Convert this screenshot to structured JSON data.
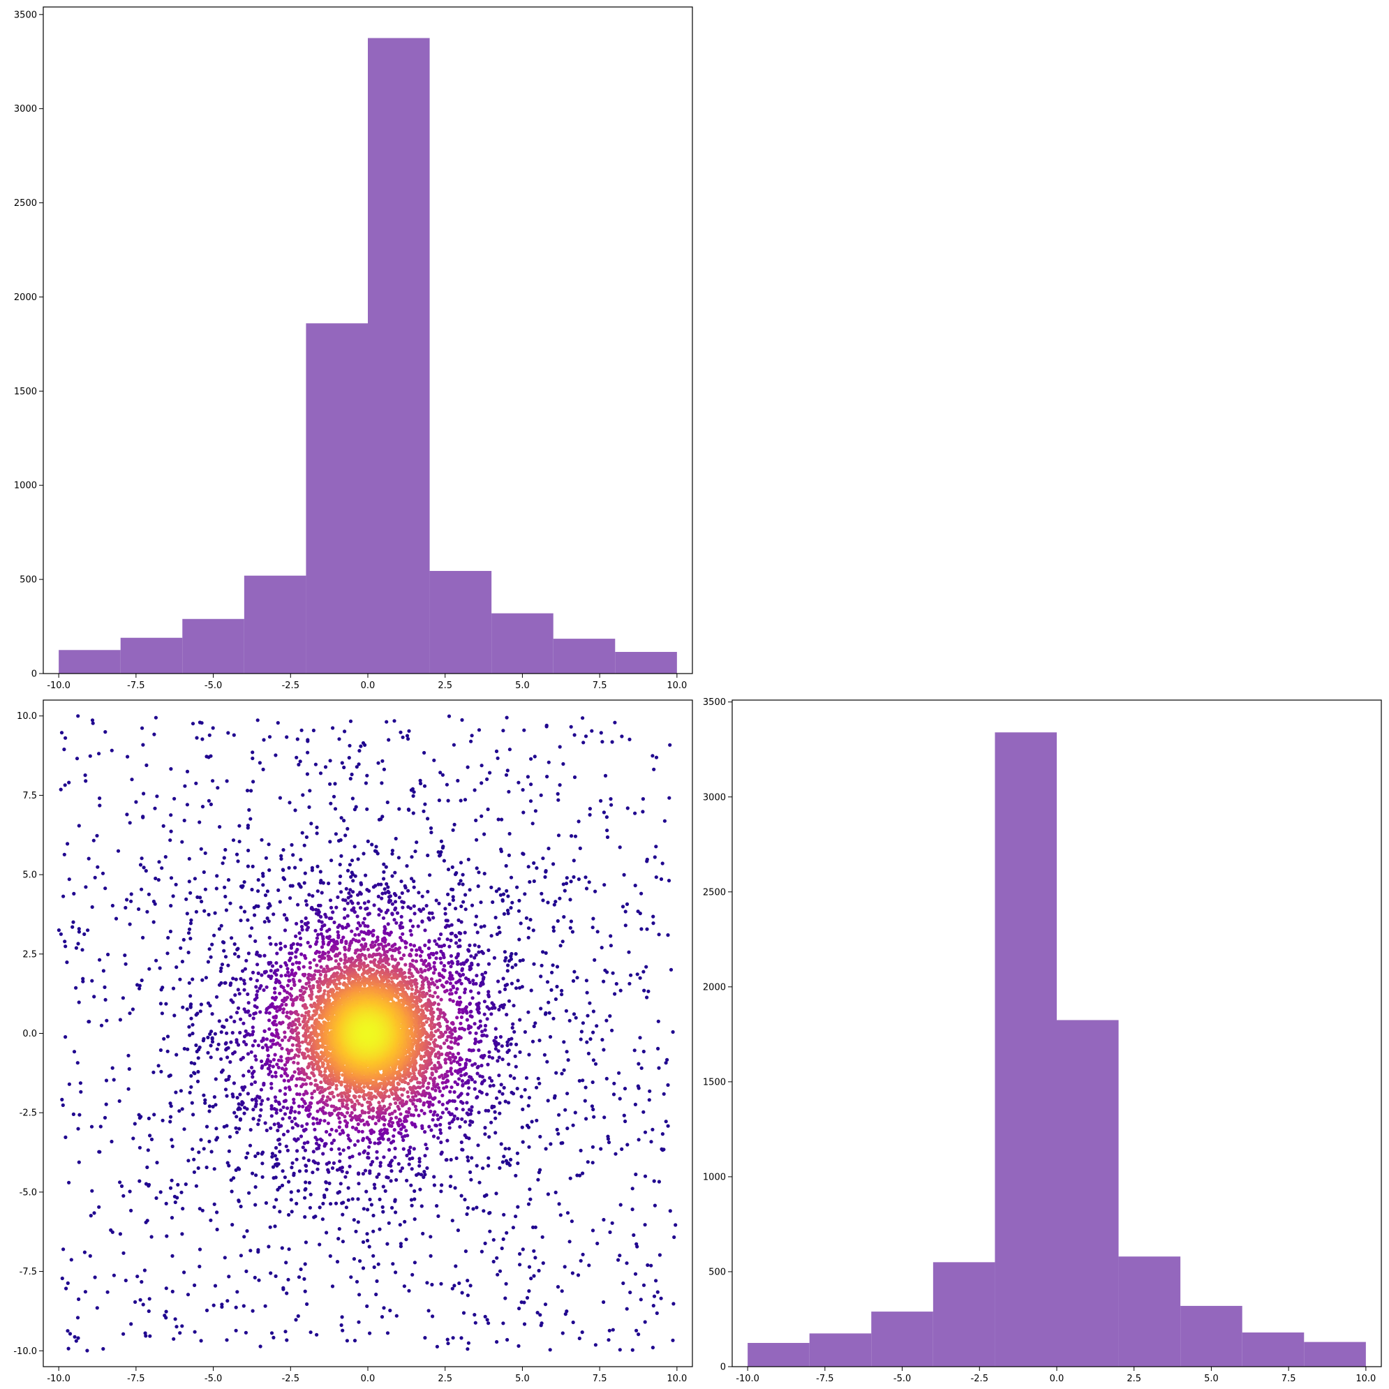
{
  "chart_data": [
    {
      "type": "bar",
      "subtype": "histogram",
      "position": "top-left",
      "color": "#9467bd",
      "bin_edges": [
        -10,
        -8,
        -6,
        -4,
        -2,
        0,
        2,
        4,
        6,
        8,
        10
      ],
      "values": [
        125,
        190,
        290,
        520,
        1860,
        3375,
        545,
        320,
        185,
        115
      ],
      "xlim": [
        -10.5,
        10.5
      ],
      "ylim": [
        0,
        3540
      ],
      "xticks": [
        "-10.0",
        "-7.5",
        "-5.0",
        "-2.5",
        "0.0",
        "2.5",
        "5.0",
        "7.5",
        "10.0"
      ],
      "xtick_values": [
        -10,
        -7.5,
        -5,
        -2.5,
        0,
        2.5,
        5,
        7.5,
        10
      ],
      "yticks": [
        "0",
        "500",
        "1000",
        "1500",
        "2000",
        "2500",
        "3000",
        "3500"
      ],
      "ytick_values": [
        0,
        500,
        1000,
        1500,
        2000,
        2500,
        3000,
        3500
      ],
      "title": "",
      "xlabel": "",
      "ylabel": ""
    },
    {
      "type": "scatter",
      "position": "bottom-left",
      "colormap": "plasma",
      "color_encoding": "point density",
      "n_points": 10000,
      "center": [
        0,
        0
      ],
      "xlim": [
        -10.5,
        10.5
      ],
      "ylim": [
        -10.5,
        10.5
      ],
      "xticks": [
        "-10.0",
        "-7.5",
        "-5.0",
        "-2.5",
        "0.0",
        "2.5",
        "5.0",
        "7.5",
        "10.0"
      ],
      "xtick_values": [
        -10,
        -7.5,
        -5,
        -2.5,
        0,
        2.5,
        5,
        7.5,
        10
      ],
      "yticks": [
        "-10.0",
        "-7.5",
        "-5.0",
        "-2.5",
        "0.0",
        "2.5",
        "5.0",
        "7.5",
        "10.0"
      ],
      "ytick_values": [
        -10,
        -7.5,
        -5,
        -2.5,
        0,
        2.5,
        5,
        7.5,
        10
      ],
      "title": "",
      "xlabel": "",
      "ylabel": ""
    },
    {
      "type": "bar",
      "subtype": "histogram",
      "position": "bottom-right",
      "color": "#9467bd",
      "bin_edges": [
        -10,
        -8,
        -6,
        -4,
        -2,
        0,
        2,
        4,
        6,
        8,
        10
      ],
      "values": [
        125,
        175,
        290,
        550,
        3340,
        1825,
        580,
        320,
        180,
        130
      ],
      "xlim": [
        -10.5,
        10.5
      ],
      "ylim": [
        0,
        3510
      ],
      "xticks": [
        "-10.0",
        "-7.5",
        "-5.0",
        "-2.5",
        "0.0",
        "2.5",
        "5.0",
        "7.5",
        "10.0"
      ],
      "xtick_values": [
        -10,
        -7.5,
        -5,
        -2.5,
        0,
        2.5,
        5,
        7.5,
        10
      ],
      "yticks": [
        "0",
        "500",
        "1000",
        "1500",
        "2000",
        "2500",
        "3000",
        "3500"
      ],
      "ytick_values": [
        0,
        500,
        1000,
        1500,
        2000,
        2500,
        3000,
        3500
      ],
      "title": "",
      "xlabel": "",
      "ylabel": ""
    }
  ]
}
